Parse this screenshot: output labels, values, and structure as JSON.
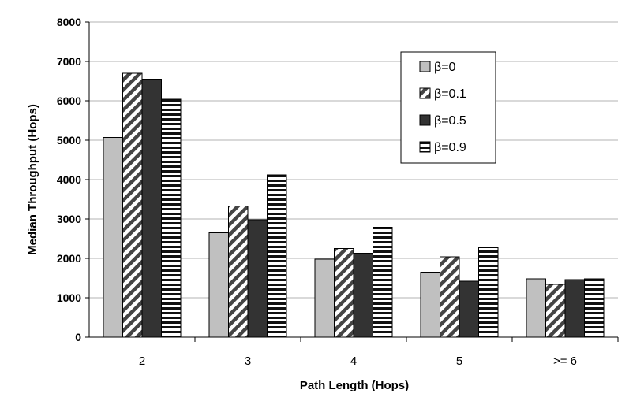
{
  "chart_data": {
    "type": "bar",
    "title": "",
    "xlabel": "Path Length (Hops)",
    "ylabel": "Median Throughput (Hops)",
    "categories": [
      "2",
      "3",
      "4",
      "5",
      ">= 6"
    ],
    "ylim": [
      0,
      8000
    ],
    "yticks": [
      "0",
      "1000",
      "2000",
      "3000",
      "4000",
      "5000",
      "6000",
      "7000",
      "8000"
    ],
    "grid": true,
    "legend_position": "top-right",
    "series": [
      {
        "name": "β=0",
        "values": [
          5070,
          2650,
          1980,
          1650,
          1480
        ],
        "fill": "#c0c0c0",
        "pattern": "solid"
      },
      {
        "name": "β=0.1",
        "values": [
          6700,
          3330,
          2250,
          2040,
          1340
        ],
        "fill": "#ffffff",
        "pattern": "diagonal"
      },
      {
        "name": "β=0.5",
        "values": [
          6550,
          2980,
          2130,
          1420,
          1460
        ],
        "fill": "#333333",
        "pattern": "solid"
      },
      {
        "name": "β=0.9",
        "values": [
          6040,
          4120,
          2790,
          2270,
          1480
        ],
        "fill": "#ffffff",
        "pattern": "horizontal"
      }
    ]
  }
}
